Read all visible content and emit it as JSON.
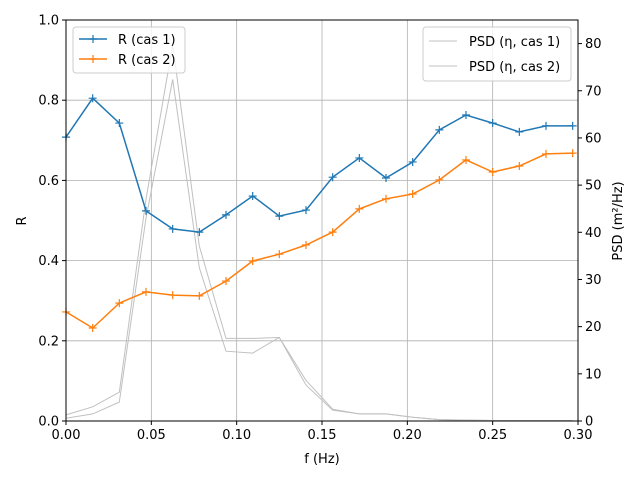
{
  "chart_data": {
    "type": "line",
    "xlabel": "f (Hz)",
    "ylabel": "R",
    "ylabel_right": "PSD (m²/Hz)",
    "xlim": [
      0,
      0.3
    ],
    "ylim": [
      0,
      1.0
    ],
    "ylim_right": [
      0,
      85
    ],
    "grid": true,
    "x_ticks": [
      "0.00",
      "0.05",
      "0.10",
      "0.15",
      "0.20",
      "0.25",
      "0.30"
    ],
    "y_ticks": [
      "0.0",
      "0.2",
      "0.4",
      "0.6",
      "0.8",
      "1.0"
    ],
    "y_ticks_right": [
      "0",
      "10",
      "20",
      "30",
      "40",
      "50",
      "60",
      "70",
      "80"
    ],
    "x": [
      0,
      0.015625,
      0.03125,
      0.046875,
      0.0625,
      0.078125,
      0.09375,
      0.109375,
      0.125,
      0.140625,
      0.15625,
      0.171875,
      0.1875,
      0.203125,
      0.21875,
      0.234375,
      0.25,
      0.265625,
      0.28125,
      0.296875
    ],
    "series": [
      {
        "name": "R (cas 1)",
        "axis": "left",
        "color": "#1f77b4",
        "marker": "+",
        "values": [
          0.708,
          0.805,
          0.743,
          0.524,
          0.479,
          0.471,
          0.514,
          0.561,
          0.511,
          0.526,
          0.608,
          0.656,
          0.606,
          0.646,
          0.726,
          0.763,
          0.743,
          0.721,
          0.736,
          0.736
        ]
      },
      {
        "name": "R (cas 2)",
        "axis": "left",
        "color": "#ff7f0e",
        "marker": "+",
        "values": [
          0.272,
          0.232,
          0.294,
          0.322,
          0.314,
          0.312,
          0.349,
          0.399,
          0.416,
          0.439,
          0.471,
          0.529,
          0.554,
          0.566,
          0.601,
          0.651,
          0.621,
          0.636,
          0.666,
          0.668
        ]
      },
      {
        "name": "PSD (η, cas 1)",
        "axis": "right",
        "color": "#c0c0c0",
        "values": [
          1.3,
          3.0,
          6.1,
          47,
          79.8,
          37.1,
          17.5,
          17.5,
          17.7,
          8.6,
          2.5,
          1.5,
          1.5,
          0.8,
          0.3,
          0.2,
          0.1,
          0.1,
          0.1,
          0.1
        ]
      },
      {
        "name": "PSD (η, cas 2)",
        "axis": "right",
        "color": "#c0c0c0",
        "values": [
          0.6,
          1.5,
          4.0,
          43,
          72.4,
          32.5,
          14.8,
          14.4,
          17.7,
          7.6,
          2.3,
          1.5,
          1.5,
          0.8,
          0.3,
          0.2,
          0.1,
          0.1,
          0.1,
          0.1
        ]
      }
    ],
    "legend_left": "upper-left",
    "legend_right": "upper-right"
  }
}
